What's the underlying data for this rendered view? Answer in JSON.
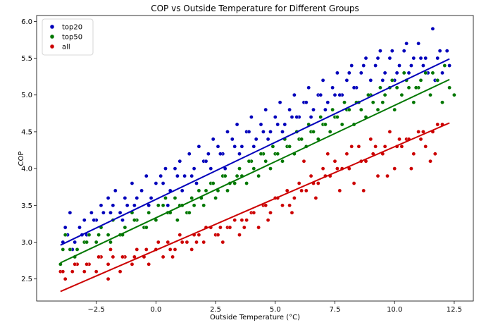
{
  "chart_data": {
    "type": "scatter",
    "title": "COP vs Outside Temperature for Different Groups",
    "xlabel": "Outside Temperature (°C)",
    "ylabel": "COP",
    "xlim": [
      -5.0,
      13.3
    ],
    "ylim": [
      2.2,
      6.08
    ],
    "xticks": [
      -2.5,
      0.0,
      2.5,
      5.0,
      7.5,
      10.0,
      12.5
    ],
    "xtick_labels": [
      "−2.5",
      "0.0",
      "2.5",
      "5.0",
      "7.5",
      "10.0",
      "12.5"
    ],
    "yticks": [
      2.5,
      3.0,
      3.5,
      4.0,
      4.5,
      5.0,
      5.5,
      6.0
    ],
    "ytick_labels": [
      "2.5",
      "3.0",
      "3.5",
      "4.0",
      "4.5",
      "5.0",
      "5.5",
      "6.0"
    ],
    "grid": false,
    "legend_position": "top-left",
    "series": [
      {
        "name": "top20",
        "color": "#0000bb",
        "fit": {
          "x": [
            -4.0,
            12.3
          ],
          "y": [
            2.96,
            5.49
          ]
        },
        "x": [
          -3.9,
          -3.7,
          -3.6,
          -3.4,
          -3.2,
          -3.0,
          -2.9,
          -2.7,
          -2.5,
          -2.3,
          -2.2,
          -2.0,
          -1.8,
          -1.7,
          -1.5,
          -1.3,
          -1.2,
          -1.0,
          -0.8,
          -0.6,
          -0.4,
          -0.2,
          0.0,
          0.2,
          0.4,
          0.6,
          0.8,
          1.0,
          1.2,
          1.4,
          1.6,
          1.8,
          2.0,
          2.2,
          2.4,
          2.6,
          2.8,
          3.0,
          3.2,
          3.4,
          3.6,
          3.8,
          4.0,
          4.2,
          4.4,
          4.6,
          4.8,
          5.0,
          5.2,
          5.4,
          5.6,
          5.8,
          6.0,
          6.2,
          6.4,
          6.6,
          6.8,
          7.0,
          7.2,
          7.4,
          7.6,
          7.8,
          8.0,
          8.2,
          8.4,
          8.6,
          8.8,
          9.0,
          9.2,
          9.4,
          9.6,
          9.8,
          10.0,
          10.2,
          10.4,
          10.6,
          10.8,
          11.0,
          11.2,
          11.4,
          11.6,
          11.8,
          12.0,
          12.2,
          -3.8,
          -3.5,
          -3.1,
          -2.6,
          -1.9,
          -1.4,
          -0.9,
          -0.3,
          0.3,
          0.9,
          1.5,
          2.1,
          2.7,
          3.3,
          3.9,
          4.5,
          5.1,
          5.7,
          6.3,
          6.9,
          7.5,
          8.1,
          8.7,
          9.3,
          9.9,
          10.5,
          11.1,
          11.7,
          12.3,
          0.5,
          1.1,
          1.7,
          2.3,
          2.9,
          3.5,
          4.1,
          4.7,
          5.3,
          5.9,
          6.5,
          7.1,
          7.7,
          8.3,
          8.9,
          9.5,
          10.1,
          10.7,
          11.3,
          11.9
        ],
        "y": [
          3.0,
          3.1,
          3.4,
          3.0,
          3.2,
          3.3,
          3.1,
          3.4,
          3.3,
          3.5,
          3.4,
          3.6,
          3.5,
          3.7,
          3.4,
          3.6,
          3.5,
          3.8,
          3.6,
          3.7,
          3.9,
          3.6,
          3.8,
          3.9,
          4.0,
          3.7,
          4.0,
          4.1,
          3.9,
          4.2,
          4.0,
          4.3,
          4.1,
          4.2,
          4.4,
          4.3,
          4.2,
          4.5,
          4.4,
          4.6,
          4.3,
          4.5,
          4.7,
          4.4,
          4.6,
          4.8,
          4.5,
          4.7,
          4.9,
          4.6,
          4.8,
          5.0,
          4.7,
          4.9,
          5.1,
          4.8,
          5.0,
          5.2,
          4.9,
          5.1,
          5.3,
          5.0,
          5.2,
          5.4,
          5.1,
          5.3,
          5.5,
          5.2,
          5.4,
          5.6,
          5.3,
          5.5,
          5.2,
          5.4,
          5.6,
          5.3,
          5.5,
          5.7,
          5.4,
          5.3,
          5.9,
          5.5,
          5.3,
          5.6,
          3.2,
          2.9,
          3.1,
          3.3,
          3.4,
          3.3,
          3.5,
          3.5,
          3.8,
          3.9,
          3.9,
          4.1,
          4.2,
          4.3,
          4.5,
          4.5,
          4.6,
          4.7,
          4.9,
          5.0,
          5.0,
          5.3,
          5.4,
          5.5,
          5.6,
          5.7,
          5.5,
          5.2,
          5.4,
          3.5,
          3.7,
          3.8,
          4.0,
          4.0,
          4.2,
          4.3,
          4.4,
          4.5,
          4.7,
          4.7,
          4.8,
          5.0,
          5.1,
          5.0,
          5.2,
          5.3,
          5.4,
          5.5,
          5.6
        ]
      },
      {
        "name": "top50",
        "color": "#007700",
        "fit": {
          "x": [
            -4.0,
            12.3
          ],
          "y": [
            2.72,
            5.21
          ]
        },
        "x": [
          -4.0,
          -3.8,
          -3.6,
          -3.3,
          -3.0,
          -2.8,
          -2.5,
          -2.3,
          -2.0,
          -1.8,
          -1.5,
          -1.3,
          -1.0,
          -0.8,
          -0.5,
          -0.3,
          0.0,
          0.3,
          0.5,
          0.8,
          1.0,
          1.3,
          1.5,
          1.8,
          2.0,
          2.3,
          2.5,
          2.8,
          3.0,
          3.3,
          3.5,
          3.8,
          4.0,
          4.3,
          4.5,
          4.8,
          5.0,
          5.3,
          5.5,
          5.8,
          6.0,
          6.3,
          6.5,
          6.8,
          7.0,
          7.3,
          7.5,
          7.8,
          8.0,
          8.3,
          8.5,
          8.8,
          9.0,
          9.3,
          9.5,
          9.8,
          10.0,
          10.3,
          10.5,
          10.8,
          11.0,
          11.3,
          11.5,
          11.8,
          12.0,
          12.3,
          12.5,
          -3.9,
          -3.4,
          -2.9,
          -2.4,
          -1.9,
          -1.4,
          -0.9,
          -0.4,
          0.1,
          0.6,
          1.1,
          1.6,
          2.1,
          2.6,
          3.1,
          3.6,
          4.1,
          4.6,
          5.1,
          5.6,
          6.1,
          6.6,
          7.1,
          7.6,
          8.1,
          8.6,
          9.1,
          9.6,
          10.1,
          10.6,
          11.1,
          11.6,
          12.1,
          0.4,
          0.9,
          1.4,
          1.9,
          2.4,
          2.9,
          3.4,
          3.9,
          4.4,
          4.9,
          5.4,
          5.9,
          6.4,
          6.9,
          7.4,
          7.9,
          8.4,
          8.9,
          9.4,
          9.9,
          10.4,
          10.9
        ],
        "y": [
          2.7,
          3.1,
          2.9,
          2.9,
          3.0,
          3.1,
          3.0,
          3.2,
          3.1,
          3.3,
          3.1,
          3.2,
          3.4,
          3.3,
          3.2,
          3.4,
          3.3,
          3.5,
          3.4,
          3.6,
          3.5,
          3.4,
          3.6,
          3.7,
          3.5,
          3.8,
          3.6,
          3.9,
          3.7,
          3.8,
          4.0,
          3.8,
          4.1,
          3.9,
          4.2,
          4.0,
          4.2,
          4.1,
          4.3,
          4.2,
          4.4,
          4.3,
          4.5,
          4.4,
          4.6,
          4.5,
          4.7,
          4.6,
          4.8,
          4.6,
          4.9,
          4.7,
          5.0,
          4.8,
          4.9,
          5.1,
          4.8,
          5.0,
          5.2,
          4.9,
          5.1,
          5.3,
          5.0,
          5.2,
          4.9,
          5.1,
          5.0,
          2.9,
          2.8,
          3.0,
          3.1,
          3.0,
          3.1,
          3.3,
          3.2,
          3.5,
          3.4,
          3.5,
          3.5,
          3.7,
          3.7,
          3.8,
          3.9,
          4.0,
          4.1,
          4.2,
          4.3,
          4.4,
          4.5,
          4.6,
          4.7,
          4.8,
          4.8,
          4.9,
          5.0,
          5.1,
          5.1,
          5.2,
          5.3,
          5.4,
          3.6,
          3.3,
          3.4,
          3.6,
          3.8,
          3.9,
          3.9,
          4.1,
          4.2,
          4.3,
          4.4,
          4.5,
          4.6,
          4.7,
          4.8,
          4.9,
          4.9,
          5.0,
          5.1,
          5.2,
          5.3,
          5.1
        ]
      },
      {
        "name": "all",
        "color": "#cc0000",
        "fit": {
          "x": [
            -4.0,
            12.3
          ],
          "y": [
            2.33,
            4.62
          ]
        },
        "x": [
          -4.0,
          -3.8,
          -3.5,
          -3.3,
          -3.0,
          -2.8,
          -2.5,
          -2.3,
          -2.0,
          -1.8,
          -1.5,
          -1.3,
          -1.0,
          -0.8,
          -0.5,
          -0.3,
          0.0,
          0.3,
          0.5,
          0.8,
          1.0,
          1.3,
          1.5,
          1.8,
          2.0,
          2.3,
          2.5,
          2.8,
          3.0,
          3.3,
          3.5,
          3.8,
          4.0,
          4.3,
          4.5,
          4.8,
          5.0,
          5.3,
          5.5,
          5.8,
          6.0,
          6.3,
          6.5,
          6.8,
          7.0,
          7.3,
          7.5,
          7.8,
          8.0,
          8.3,
          8.5,
          8.8,
          9.0,
          9.3,
          9.5,
          9.8,
          10.0,
          10.3,
          10.5,
          10.8,
          11.0,
          11.3,
          11.5,
          11.8,
          12.0,
          -3.9,
          -3.4,
          -2.9,
          -2.4,
          -1.9,
          -1.4,
          -0.9,
          -0.4,
          0.1,
          0.6,
          1.1,
          1.6,
          2.1,
          2.6,
          3.1,
          3.6,
          4.1,
          4.6,
          5.1,
          5.6,
          6.1,
          6.6,
          7.1,
          7.6,
          8.1,
          8.6,
          9.1,
          9.6,
          10.1,
          10.6,
          11.1,
          11.6,
          -2.0,
          -1.0,
          0.7,
          1.7,
          2.7,
          3.7,
          4.7,
          5.7,
          6.7,
          7.7,
          8.7,
          9.7,
          10.7,
          11.7,
          6.2,
          7.2,
          8.2,
          9.2,
          10.2,
          11.2
        ],
        "y": [
          2.6,
          2.5,
          2.6,
          2.7,
          2.6,
          2.7,
          2.6,
          2.8,
          2.7,
          2.8,
          2.6,
          2.8,
          2.7,
          2.9,
          2.8,
          2.7,
          2.9,
          2.8,
          3.0,
          2.9,
          3.1,
          3.0,
          2.9,
          3.1,
          3.0,
          3.2,
          3.1,
          3.0,
          3.2,
          3.3,
          3.1,
          3.3,
          3.4,
          3.2,
          3.5,
          3.4,
          3.6,
          3.5,
          3.7,
          3.6,
          3.8,
          3.7,
          3.9,
          3.8,
          4.0,
          3.9,
          4.1,
          4.0,
          4.2,
          3.8,
          4.3,
          4.1,
          4.4,
          3.9,
          4.2,
          4.5,
          4.0,
          4.3,
          4.4,
          4.2,
          4.5,
          4.3,
          4.1,
          4.6,
          4.6,
          2.6,
          2.7,
          2.7,
          2.8,
          2.9,
          2.8,
          2.8,
          2.9,
          3.0,
          2.9,
          3.0,
          3.1,
          3.2,
          3.1,
          3.2,
          3.3,
          3.4,
          3.5,
          3.6,
          3.5,
          3.7,
          3.8,
          3.9,
          4.0,
          4.0,
          4.1,
          4.2,
          4.3,
          4.3,
          4.4,
          4.4,
          4.5,
          2.5,
          2.7,
          2.8,
          3.0,
          3.2,
          3.2,
          3.3,
          3.4,
          3.6,
          3.7,
          3.7,
          3.9,
          4.0,
          4.2,
          4.1,
          4.2,
          4.3,
          4.3,
          4.4,
          4.5
        ]
      }
    ]
  }
}
